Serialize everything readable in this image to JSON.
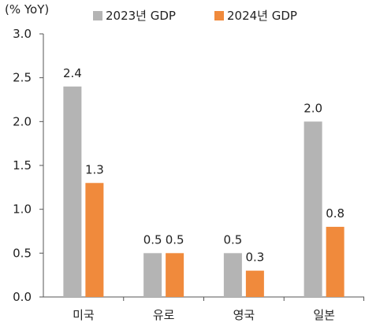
{
  "chart_data": {
    "type": "bar",
    "unit_label": "(% YoY)",
    "categories": [
      "미국",
      "유로",
      "영국",
      "일본"
    ],
    "series": [
      {
        "name": "2023년 GDP",
        "color": "#B4B4B4",
        "values": [
          2.4,
          0.5,
          0.5,
          2.0
        ],
        "labels": [
          "2.4",
          "0.5",
          "0.5",
          "2.0"
        ]
      },
      {
        "name": "2024년 GDP",
        "color": "#F08A3C",
        "values": [
          1.3,
          0.5,
          0.3,
          0.8
        ],
        "labels": [
          "1.3",
          "0.5",
          "0.3",
          "0.8"
        ]
      }
    ],
    "ylim": [
      0,
      3
    ],
    "yticks": [
      0,
      0.5,
      1,
      1.5,
      2,
      2.5,
      3
    ],
    "ytick_labels": [
      "0.0",
      "0.5",
      "1.0",
      "1.5",
      "2.0",
      "2.5",
      "3.0"
    ],
    "grid": false,
    "legend_position": "top"
  }
}
